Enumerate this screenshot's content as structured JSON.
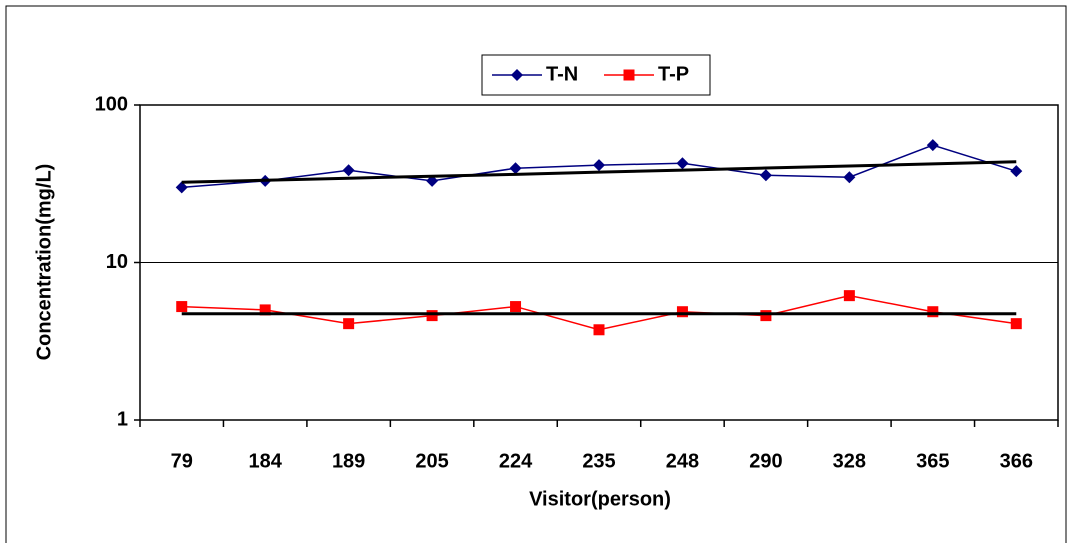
{
  "chart_data": {
    "type": "line",
    "x_label": "Visitor(person)",
    "y_label": "Concentration(mg/L)",
    "categories": [
      "79",
      "184",
      "189",
      "205",
      "224",
      "235",
      "248",
      "290",
      "328",
      "365",
      "366"
    ],
    "series": [
      {
        "name": "T-N",
        "color": "#000080",
        "marker": "diamond",
        "values": [
          30,
          33,
          38.5,
          33,
          39.7,
          41.5,
          42.7,
          35.8,
          34.8,
          55.6,
          38
        ]
      },
      {
        "name": "T-P",
        "color": "#ff0000",
        "marker": "square",
        "values": [
          5.25,
          5.0,
          4.09,
          4.6,
          5.25,
          3.74,
          4.87,
          4.6,
          6.16,
          4.87,
          4.09
        ]
      },
      {
        "color": "#000000",
        "values": [
          32.3,
          33.3,
          34.3,
          35.3,
          36.3,
          37.5,
          38.6,
          39.8,
          41.0,
          42.3,
          43.6
        ]
      },
      {
        "color": "#000000",
        "values": [
          4.73,
          4.73,
          4.73,
          4.73,
          4.73,
          4.73,
          4.73,
          4.73,
          4.73,
          4.73,
          4.73
        ]
      }
    ],
    "log_y": true,
    "ylim": [
      1,
      100
    ],
    "yticks": [
      1,
      10,
      100
    ],
    "grid": true,
    "legend": "top"
  }
}
